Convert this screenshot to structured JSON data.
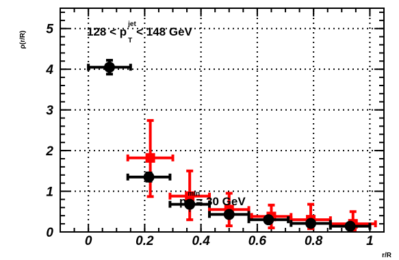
{
  "chart_data": {
    "type": "scatter",
    "xlabel": "r/R",
    "ylabel": "ρ(r/R)",
    "xlim": [
      -0.1,
      1.05
    ],
    "ylim": [
      0,
      5.5
    ],
    "grid": true,
    "x_ticks": [
      "0",
      "0.2",
      "0.4",
      "0.6",
      "0.8",
      "1"
    ],
    "y_ticks": [
      "0",
      "1",
      "2",
      "3",
      "4",
      "5"
    ],
    "annotations": [
      {
        "text": "128 < p",
        "sup": "jet",
        "sub": "T",
        "tail": " < 148 GeV"
      },
      {
        "text": "p",
        "sup": "min",
        "sub": "T",
        "tail": " = 30 GeV"
      }
    ],
    "series": [
      {
        "color": "#ff0000",
        "points": [
          {
            "x": 0.22,
            "y": 1.82,
            "xerr": 0.08,
            "yerr_lo": 0.95,
            "yerr_hi": 0.92
          },
          {
            "x": 0.36,
            "y": 0.88,
            "xerr": 0.07,
            "yerr_lo": 0.58,
            "yerr_hi": 0.62
          },
          {
            "x": 0.5,
            "y": 0.55,
            "xerr": 0.07,
            "yerr_lo": 0.4,
            "yerr_hi": 0.4
          },
          {
            "x": 0.65,
            "y": 0.38,
            "xerr": 0.07,
            "yerr_lo": 0.28,
            "yerr_hi": 0.28
          },
          {
            "x": 0.79,
            "y": 0.3,
            "xerr": 0.07,
            "yerr_lo": 0.22,
            "yerr_hi": 0.38
          },
          {
            "x": 0.94,
            "y": 0.2,
            "xerr": 0.08,
            "yerr_lo": 0.15,
            "yerr_hi": 0.3
          }
        ]
      },
      {
        "color": "#000000",
        "points": [
          {
            "x": 0.075,
            "y": 4.05,
            "xerr": 0.075,
            "yerr_lo": 0.17,
            "yerr_hi": 0.17
          },
          {
            "x": 0.215,
            "y": 1.35,
            "xerr": 0.075,
            "yerr_lo": 0.1,
            "yerr_hi": 0.1
          },
          {
            "x": 0.36,
            "y": 0.68,
            "xerr": 0.07,
            "yerr_lo": 0.07,
            "yerr_hi": 0.07
          },
          {
            "x": 0.5,
            "y": 0.43,
            "xerr": 0.07,
            "yerr_lo": 0.05,
            "yerr_hi": 0.05
          },
          {
            "x": 0.64,
            "y": 0.3,
            "xerr": 0.07,
            "yerr_lo": 0.05,
            "yerr_hi": 0.05
          },
          {
            "x": 0.79,
            "y": 0.21,
            "xerr": 0.07,
            "yerr_lo": 0.04,
            "yerr_hi": 0.04
          },
          {
            "x": 0.93,
            "y": 0.14,
            "xerr": 0.07,
            "yerr_lo": 0.04,
            "yerr_hi": 0.04
          }
        ]
      }
    ]
  }
}
